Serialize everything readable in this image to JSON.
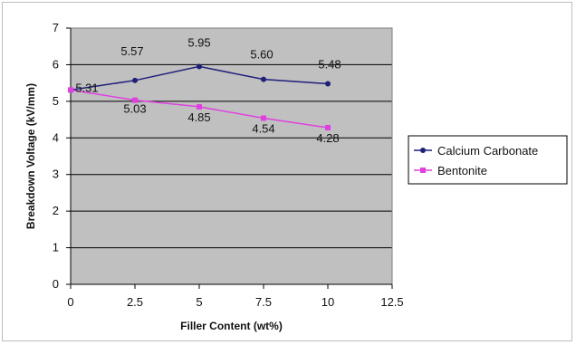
{
  "chart_data": {
    "type": "line",
    "xlabel": "Filler Content (wt%)",
    "ylabel": "Breakdown Voltage (kV/mm)",
    "xlim": [
      0,
      12.5
    ],
    "ylim": [
      0,
      7
    ],
    "xticks": [
      "0",
      "2.5",
      "5",
      "7.5",
      "10",
      "12.5"
    ],
    "yticks": [
      "0",
      "1",
      "2",
      "3",
      "4",
      "5",
      "6",
      "7"
    ],
    "x": [
      0,
      2.5,
      5,
      7.5,
      10
    ],
    "grid": true,
    "plot_background": "#c0c0c0",
    "legend_position": "right",
    "series": [
      {
        "name": "Calcium Carbonate",
        "color": "#1f1f7a",
        "values": [
          5.31,
          5.57,
          5.95,
          5.6,
          5.48
        ],
        "labels": [
          "",
          "5.57",
          "5.95",
          "5.60",
          "5.48"
        ]
      },
      {
        "name": "Bentonite",
        "color": "#e040e0",
        "values": [
          5.31,
          5.03,
          4.85,
          4.54,
          4.28
        ],
        "labels": [
          "5.31",
          "5.03",
          "4.85",
          "4.54",
          "4.28"
        ]
      }
    ]
  }
}
